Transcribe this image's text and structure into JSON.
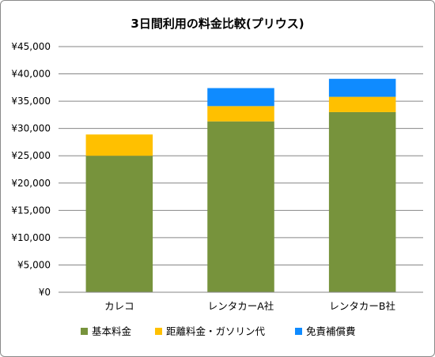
{
  "chart_data": {
    "type": "bar",
    "stacked": true,
    "title": "3日間利用の料金比較(プリウス)",
    "xlabel": "",
    "ylabel": "",
    "ylim": [
      0,
      45000
    ],
    "y_ticks": [
      "¥0",
      "¥5,000",
      "¥10,000",
      "¥15,000",
      "¥20,000",
      "¥25,000",
      "¥30,000",
      "¥35,000",
      "¥40,000",
      "¥45,000"
    ],
    "grid": true,
    "legend_position": "bottom",
    "categories": [
      "カレコ",
      "レンタカーA社",
      "レンタカーB社"
    ],
    "series": [
      {
        "name": "基本料金",
        "color": "#77933c",
        "values": [
          25000,
          31300,
          33000
        ]
      },
      {
        "name": "距離料金・ガソリン代",
        "color": "#ffc000",
        "values": [
          3900,
          2800,
          2800
        ]
      },
      {
        "name": "免責補償費",
        "color": "#0f8bff",
        "values": [
          0,
          3300,
          3300
        ]
      }
    ]
  }
}
